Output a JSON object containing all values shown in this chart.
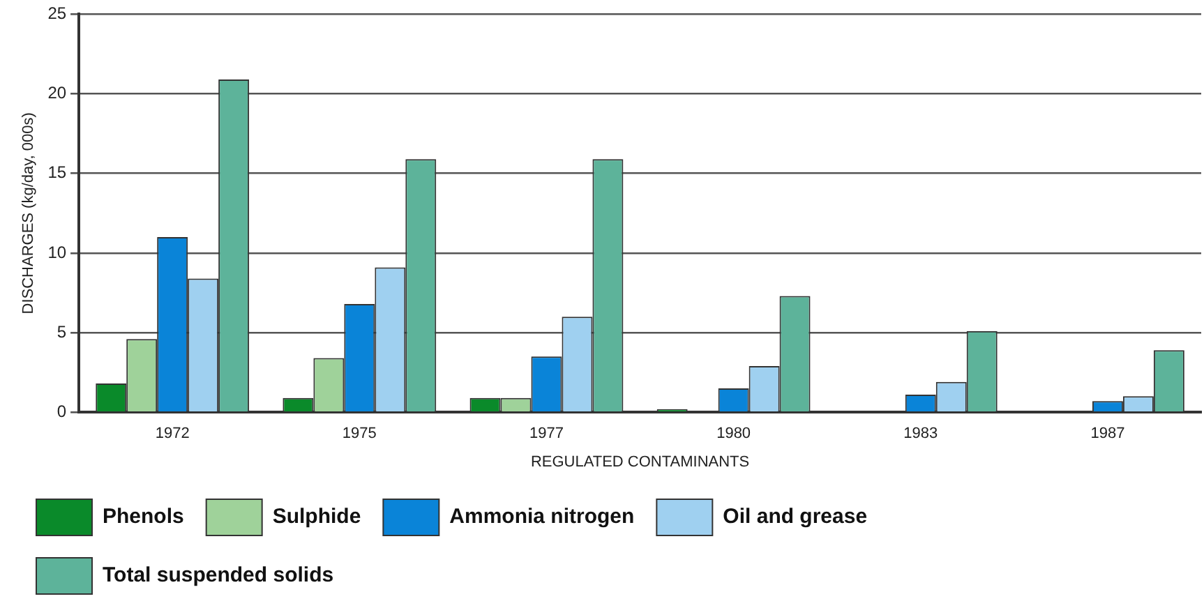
{
  "chart_data": {
    "type": "bar",
    "xlabel": "REGULATED CONTAMINANTS",
    "ylabel": "DISCHARGES (kg/day, 000s)",
    "categories": [
      "1972",
      "1975",
      "1977",
      "1980",
      "1983",
      "1987"
    ],
    "series": [
      {
        "name": "Phenols",
        "color": "#0a8a2a",
        "values": [
          1.8,
          0.9,
          0.9,
          0.2,
          null,
          null
        ]
      },
      {
        "name": "Sulphide",
        "color": "#9fd29a",
        "values": [
          4.6,
          3.4,
          0.9,
          null,
          null,
          null
        ]
      },
      {
        "name": "Ammonia nitrogen",
        "color": "#0a84d8",
        "values": [
          11,
          6.8,
          3.5,
          1.5,
          1.1,
          0.7
        ]
      },
      {
        "name": "Oil and grease",
        "color": "#9fd0f0",
        "values": [
          8.4,
          9.1,
          6.0,
          2.9,
          1.9,
          1.0
        ]
      },
      {
        "name": "Total suspended solids",
        "color": "#5db39a",
        "values": [
          20.9,
          15.9,
          15.9,
          7.3,
          5.1,
          3.9
        ]
      }
    ],
    "ylim": [
      0,
      25
    ],
    "yticks": [
      0,
      5,
      10,
      15,
      20,
      25
    ],
    "grid": "y",
    "legend": "bottom"
  }
}
